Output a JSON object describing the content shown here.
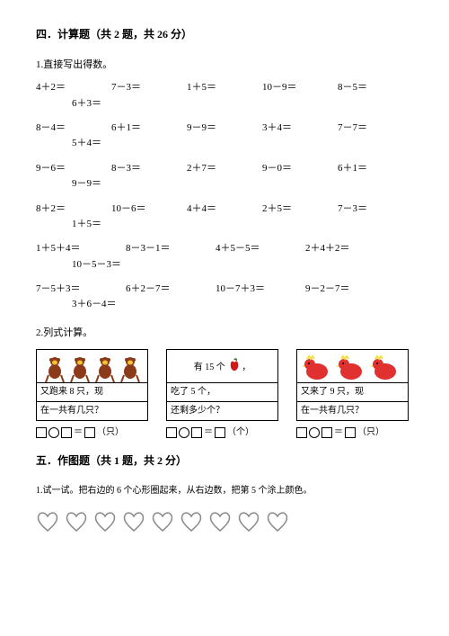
{
  "section4": {
    "title": "四．计算题（共 2 题，共 26 分）",
    "q1_title": "1.直接写出得数。",
    "rows": [
      [
        "4＋2＝",
        "7－3＝",
        "1＋5＝",
        "10－9＝",
        "8－5＝"
      ],
      [
        "6＋3＝"
      ],
      [
        "8－4＝",
        "6＋1＝",
        "9－9＝",
        "3＋4＝",
        "7－7＝"
      ],
      [
        "5＋4＝"
      ],
      [
        "9－6＝",
        "8－3＝",
        "2＋7＝",
        "9－0＝",
        "6＋1＝"
      ],
      [
        "9－9＝"
      ],
      [
        "8＋2＝",
        "10－6＝",
        "4＋4＝",
        "2＋5＝",
        "7－3＝"
      ],
      [
        "1＋5＝"
      ],
      [
        "1＋5＋4＝",
        "8－3－1＝",
        "4＋5－5＝",
        "2＋4＋2＝"
      ],
      [
        "10－5－3＝"
      ],
      [
        "7－5＋3＝",
        "6＋2－7＝",
        "10－7＋3＝",
        "9－2－7＝"
      ],
      [
        "3＋6－4＝"
      ]
    ],
    "q2_title": "2.列式计算。",
    "cards": [
      {
        "top_text": "",
        "line1": "又跑来 8 只，现",
        "line2": "在一共有几只？",
        "unit": "（只）",
        "img": "monkeys",
        "colors": {
          "body": "#8b3a1a",
          "accent": "#f4c430"
        }
      },
      {
        "top_text": "有 15 个",
        "top_suffix": "，",
        "line1": "吃了 5 个，",
        "line2": "还剩多少个？",
        "unit": "（个）",
        "img": "apple",
        "colors": {
          "body": "#d01818",
          "accent": "#2a7d2a"
        }
      },
      {
        "top_text": "",
        "line1": "又来了 9 只，现",
        "line2": "在一共有几只？",
        "unit": "（只）",
        "img": "chickens",
        "colors": {
          "body": "#e03030",
          "accent": "#f4e040"
        }
      }
    ]
  },
  "section5": {
    "title": "五．作图题（共 1 题，共 2 分）",
    "q1": "1.试一试。把右边的 6 个心形圈起来，从右边数，把第 5 个涂上颜色。",
    "heart_count": 9,
    "heart_stroke": "#888888",
    "heart_fill": "#ffffff"
  },
  "colors": {
    "text": "#000000",
    "bg": "#ffffff"
  },
  "fonts": {
    "body_family": "SimSun",
    "title_size_pt": 12,
    "body_size_pt": 11,
    "card_size_pt": 10
  }
}
